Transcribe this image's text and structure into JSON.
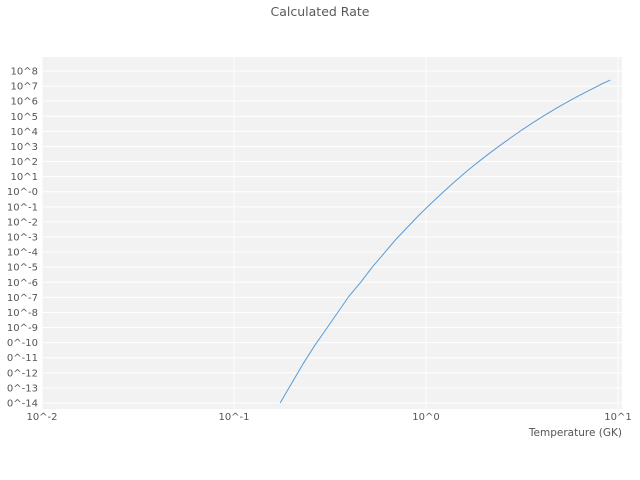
{
  "chart": {
    "title": "Calculated Rate",
    "x_axis_label": "Temperature (GK)",
    "x_tick_labels": [
      "10^-2",
      "10^-1",
      "10^0",
      "10^1"
    ],
    "x_tick_log_values": [
      -2,
      -1,
      0,
      1
    ],
    "y_tick_labels": [
      "10^8",
      "10^7",
      "10^6",
      "10^5",
      "10^4",
      "10^3",
      "10^2",
      "10^1",
      "10^-0",
      "10^-1",
      "10^-2",
      "10^-3",
      "10^-4",
      "10^-5",
      "10^-6",
      "10^-7",
      "10^-8",
      "10^-9",
      "0^-10",
      "0^-11",
      "0^-12",
      "0^-13",
      "0^-14"
    ],
    "y_tick_log_values": [
      8,
      7,
      6,
      5,
      4,
      3,
      2,
      1,
      0,
      -1,
      -2,
      -3,
      -4,
      -5,
      -6,
      -7,
      -8,
      -9,
      -10,
      -11,
      -12,
      -13,
      -14
    ],
    "colors": {
      "line": "#5b9bd5",
      "plot_background": "#f2f2f2",
      "grid": "#ffffff",
      "text": "#555555",
      "page_background": "#ffffff"
    }
  },
  "chart_data": {
    "type": "line",
    "title": "Calculated Rate",
    "xlabel": "Temperature (GK)",
    "ylabel": "",
    "x_scale": "log",
    "y_scale": "log",
    "xlim_log10": [
      -2,
      1
    ],
    "ylim_log10": [
      -14,
      8
    ],
    "grid": true,
    "legend": "none",
    "series": [
      {
        "name": "calculated-rate",
        "log10_x": [
          -0.76,
          -0.7,
          -0.64,
          -0.58,
          -0.52,
          -0.46,
          -0.4,
          -0.34,
          -0.28,
          -0.22,
          -0.16,
          -0.1,
          -0.04,
          0.02,
          0.08,
          0.14,
          0.2,
          0.26,
          0.32,
          0.38,
          0.44,
          0.5,
          0.56,
          0.62,
          0.68,
          0.74,
          0.8,
          0.86,
          0.92,
          0.96
        ],
        "log10_y": [
          -14.0,
          -12.7,
          -11.4,
          -10.2,
          -9.1,
          -8.0,
          -6.9,
          -6.0,
          -5.0,
          -4.1,
          -3.2,
          -2.4,
          -1.6,
          -0.85,
          -0.13,
          0.56,
          1.22,
          1.85,
          2.45,
          3.02,
          3.57,
          4.1,
          4.6,
          5.08,
          5.54,
          5.97,
          6.39,
          6.78,
          7.17,
          7.4
        ]
      }
    ]
  }
}
